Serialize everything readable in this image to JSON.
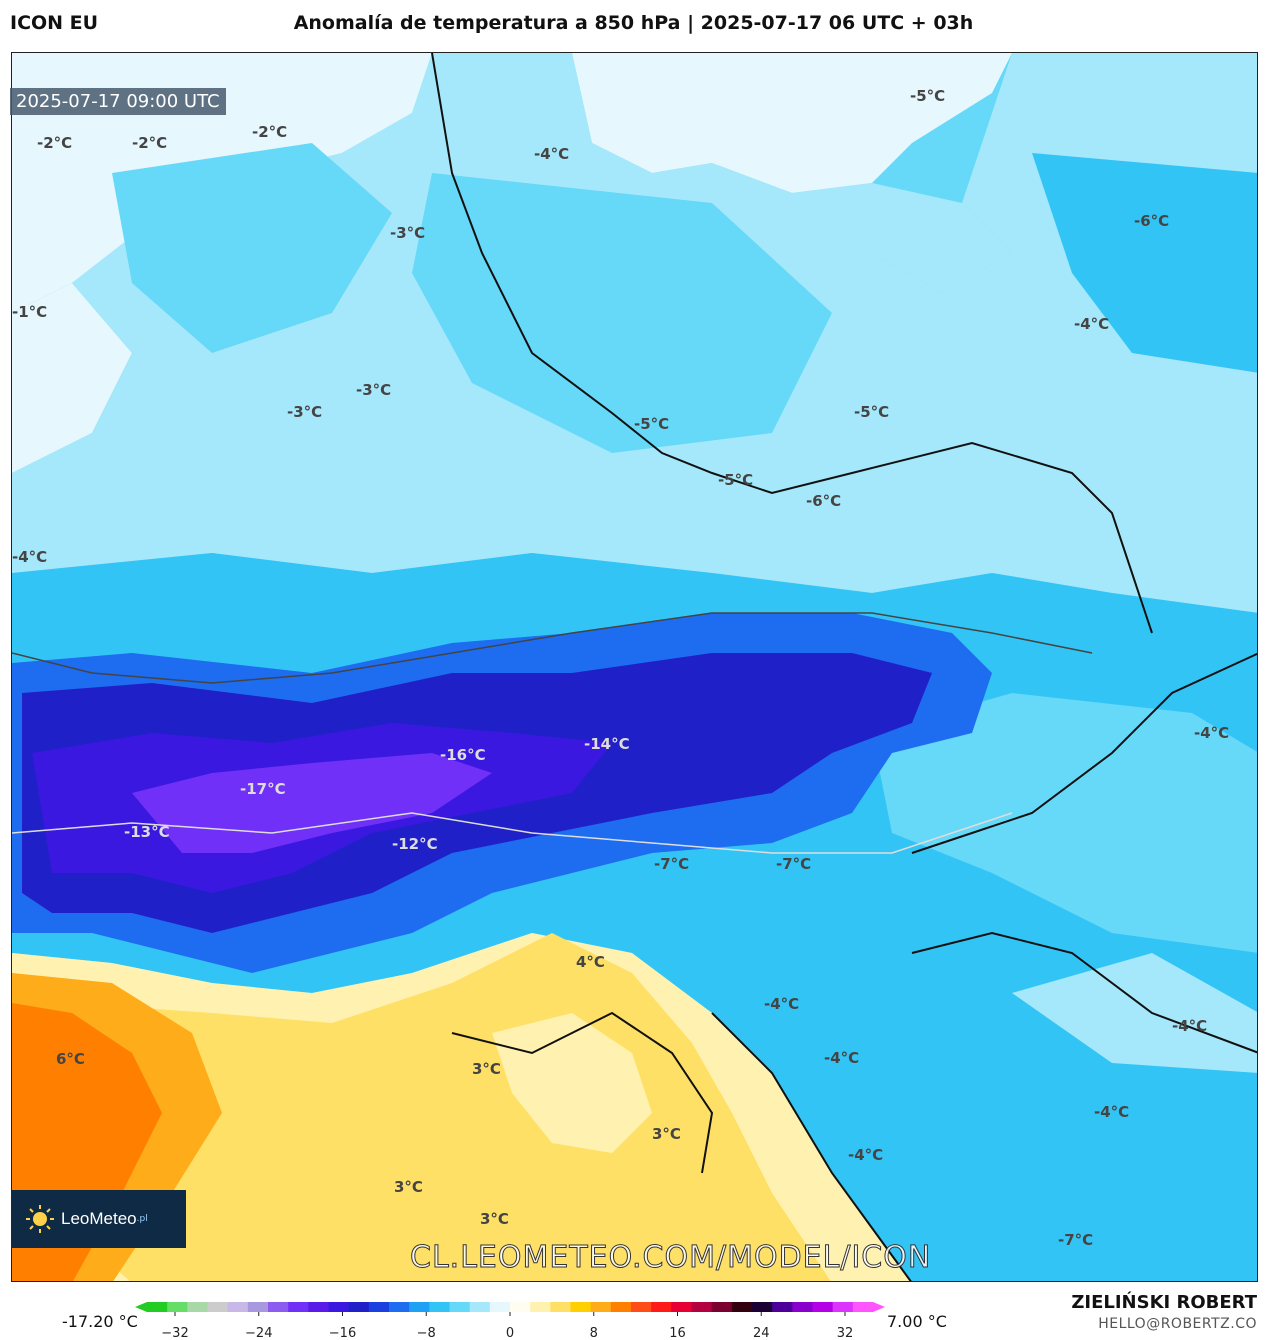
{
  "header": {
    "model": "ICON EU",
    "title": "Anomalía de temperatura a 850 hPa | 2025-07-17 06 UTC + 03h"
  },
  "map": {
    "timestamp": "2025-07-17 09:00 UTC",
    "contour_labels": [
      "-2°C",
      "-2°C",
      "-2°C",
      "-4°C",
      "-5°C",
      "-3°C",
      "-6°C",
      "-1°C",
      "-4°C",
      "-3°C",
      "-3°C",
      "-5°C",
      "-5°C",
      "-5°C",
      "-6°C",
      "-4°C",
      "-14°C",
      "-4°C",
      "-16°C",
      "-17°C",
      "-13°C",
      "-12°C",
      "-7°C",
      "-7°C",
      "4°C",
      "-4°C",
      "-4°C",
      "6°C",
      "-4°C",
      "3°C",
      "-4°C",
      "3°C",
      "-4°C",
      "3°C",
      "3°C",
      "-7°C"
    ],
    "watermark": "CL.LEOMETEO.COM/MODEL/ICON",
    "logo": {
      "name": "LeoMeteo",
      "suffix": ".pl"
    }
  },
  "colorbar": {
    "min_label": "-17.20 °C",
    "max_label": "7.00 °C",
    "ticks": [
      "−32",
      "−24",
      "−16",
      "−8",
      "0",
      "8",
      "16",
      "24",
      "32"
    ],
    "colors": [
      "#22cc22",
      "#66dd66",
      "#a8d8a8",
      "#cccccc",
      "#c8b8e8",
      "#a898e0",
      "#8c5cf0",
      "#7030f8",
      "#5a1ae8",
      "#3a18e0",
      "#2020c8",
      "#1a40e0",
      "#1e6cf0",
      "#1ea0f5",
      "#33c4f6",
      "#66d8f8",
      "#a6e8fb",
      "#e6f7fd",
      "#fffdf0",
      "#fff2b0",
      "#ffe066",
      "#ffd000",
      "#ffac1a",
      "#ff8000",
      "#ff4d1a",
      "#ff1a1a",
      "#e60033",
      "#b30040",
      "#7a0030",
      "#330010",
      "#1a0033",
      "#4d0099",
      "#8800cc",
      "#b300e6",
      "#dd33ff",
      "#ff55ff"
    ]
  },
  "footer": {
    "author": "ZIELIŃSKI ROBERT",
    "email": "HELLO@ROBERTZ.CO"
  },
  "style": {
    "light_blue": "#a6e8fb",
    "cyan": "#33c4f6",
    "blue": "#1e6cf0",
    "dark_blue": "#2020c8",
    "violet": "#7030f8",
    "yellow": "#ffd000",
    "pale_yellow": "#fff2b0",
    "orange": "#ff8000"
  }
}
